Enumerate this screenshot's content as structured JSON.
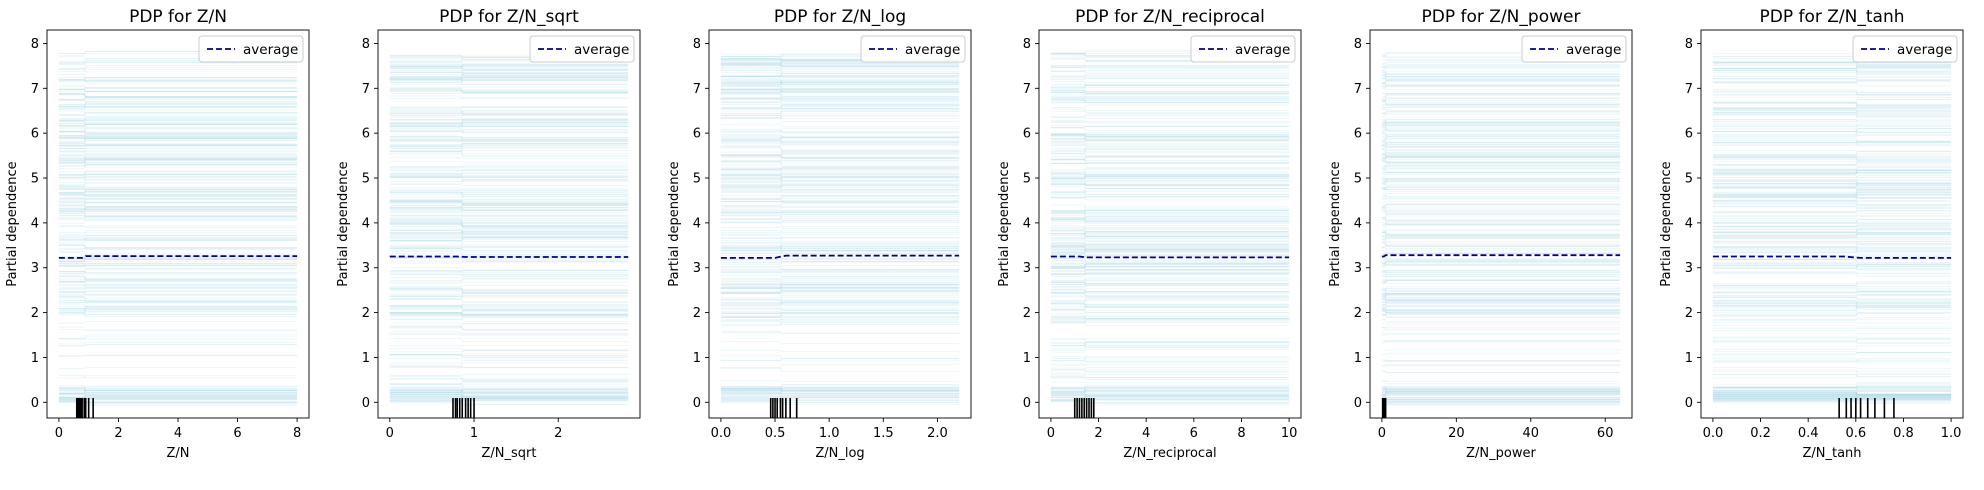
{
  "figure": {
    "background": "#ffffff"
  },
  "colors": {
    "ice_lines": "#add8e6",
    "average_line": "#00008b",
    "rug": "#000000"
  },
  "chart_data": [
    {
      "type": "line",
      "title": "PDP for Z/N",
      "xlabel": "Z/N",
      "ylabel": "Partial dependence",
      "xlim": [
        -0.4,
        8.4
      ],
      "ylim": [
        -0.35,
        8.3
      ],
      "xticks": [
        0,
        2,
        4,
        6,
        8
      ],
      "yticks": [
        0,
        1,
        2,
        3,
        4,
        5,
        6,
        7,
        8
      ],
      "x_range": [
        0,
        8
      ],
      "break_x": 0.85,
      "average": {
        "x": [
          0,
          0.8,
          0.9,
          8
        ],
        "y": [
          3.22,
          3.22,
          3.26,
          3.26
        ]
      },
      "rug": [
        0.6,
        0.63,
        0.66,
        0.7,
        0.74,
        0.78,
        0.85,
        0.9,
        1.0,
        1.15
      ],
      "legend": {
        "label": "average",
        "position": "top-right"
      }
    },
    {
      "type": "line",
      "title": "PDP for Z/N_sqrt",
      "xlabel": "Z/N_sqrt",
      "ylabel": "Partial dependence",
      "xlim": [
        -0.14,
        2.97
      ],
      "ylim": [
        -0.35,
        8.3
      ],
      "xticks": [
        0,
        1,
        2
      ],
      "yticks": [
        0,
        1,
        2,
        3,
        4,
        5,
        6,
        7,
        8
      ],
      "x_range": [
        0,
        2.83
      ],
      "break_x": 0.85,
      "average": {
        "x": [
          0,
          0.8,
          0.9,
          2.83
        ],
        "y": [
          3.25,
          3.25,
          3.24,
          3.24
        ]
      },
      "rug": [
        0.75,
        0.78,
        0.8,
        0.83,
        0.86,
        0.9,
        0.93,
        0.96,
        1.0
      ],
      "legend": {
        "label": "average",
        "position": "top-right"
      }
    },
    {
      "type": "line",
      "title": "PDP for Z/N_log",
      "xlabel": "Z/N_log",
      "ylabel": "Partial dependence",
      "xlim": [
        -0.11,
        2.31
      ],
      "ylim": [
        -0.35,
        8.3
      ],
      "xticks": [
        0.0,
        0.5,
        1.0,
        1.5,
        2.0
      ],
      "yticks": [
        0,
        1,
        2,
        3,
        4,
        5,
        6,
        7,
        8
      ],
      "x_range": [
        0,
        2.2
      ],
      "break_x": 0.55,
      "average": {
        "x": [
          0,
          0.5,
          0.6,
          2.2
        ],
        "y": [
          3.22,
          3.22,
          3.27,
          3.27
        ]
      },
      "rug": [
        0.46,
        0.48,
        0.5,
        0.52,
        0.55,
        0.57,
        0.6,
        0.64,
        0.7
      ],
      "legend": {
        "label": "average",
        "position": "top-right"
      }
    },
    {
      "type": "line",
      "title": "PDP for Z/N_reciprocal",
      "xlabel": "Z/N_reciprocal",
      "ylabel": "Partial dependence",
      "xlim": [
        -0.5,
        10.5
      ],
      "ylim": [
        -0.35,
        8.3
      ],
      "xticks": [
        0,
        2,
        4,
        6,
        8,
        10
      ],
      "yticks": [
        0,
        1,
        2,
        3,
        4,
        5,
        6,
        7,
        8
      ],
      "x_range": [
        0,
        10
      ],
      "break_x": 1.4,
      "average": {
        "x": [
          0,
          1.2,
          1.5,
          10
        ],
        "y": [
          3.25,
          3.25,
          3.23,
          3.23
        ]
      },
      "rug": [
        1.0,
        1.1,
        1.2,
        1.3,
        1.4,
        1.5,
        1.6,
        1.7,
        1.8
      ],
      "legend": {
        "label": "average",
        "position": "top-right"
      }
    },
    {
      "type": "line",
      "title": "PDP for Z/N_power",
      "xlabel": "Z/N_power",
      "ylabel": "Partial dependence",
      "xlim": [
        -3.2,
        67.2
      ],
      "ylim": [
        -0.35,
        8.3
      ],
      "xticks": [
        0,
        20,
        40,
        60
      ],
      "yticks": [
        0,
        1,
        2,
        3,
        4,
        5,
        6,
        7,
        8
      ],
      "x_range": [
        0,
        64
      ],
      "break_x": 0.8,
      "average": {
        "x": [
          0,
          0.5,
          1.0,
          64
        ],
        "y": [
          3.25,
          3.25,
          3.28,
          3.28
        ]
      },
      "rug": [
        0.2,
        0.4,
        0.5,
        0.6,
        0.7,
        0.8,
        0.9,
        1.0
      ],
      "legend": {
        "label": "average",
        "position": "top-right"
      }
    },
    {
      "type": "line",
      "title": "PDP for Z/N_tanh",
      "xlabel": "Z/N_tanh",
      "ylabel": "Partial dependence",
      "xlim": [
        -0.05,
        1.05
      ],
      "ylim": [
        -0.35,
        8.3
      ],
      "xticks": [
        0.0,
        0.2,
        0.4,
        0.6,
        0.8,
        1.0
      ],
      "yticks": [
        0,
        1,
        2,
        3,
        4,
        5,
        6,
        7,
        8
      ],
      "x_range": [
        0,
        1.0
      ],
      "break_x": 0.6,
      "average": {
        "x": [
          0,
          0.55,
          0.62,
          1.0
        ],
        "y": [
          3.25,
          3.25,
          3.22,
          3.22
        ]
      },
      "rug": [
        0.53,
        0.56,
        0.58,
        0.6,
        0.62,
        0.65,
        0.68,
        0.72,
        0.76
      ],
      "legend": {
        "label": "average",
        "position": "top-right"
      }
    }
  ]
}
